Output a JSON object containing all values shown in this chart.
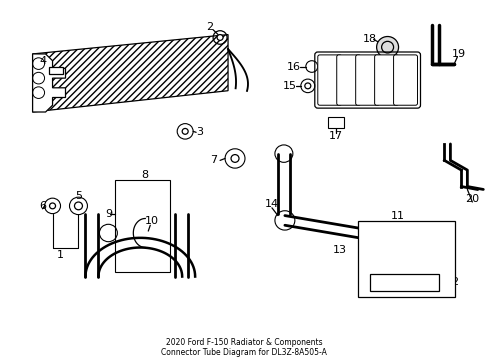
{
  "title": "2020 Ford F-150 Radiator & Components\nConnector Tube Diagram for DL3Z-8A505-A",
  "background_color": "#ffffff",
  "line_color": "#000000",
  "figsize": [
    4.89,
    3.6
  ],
  "dpi": 100
}
